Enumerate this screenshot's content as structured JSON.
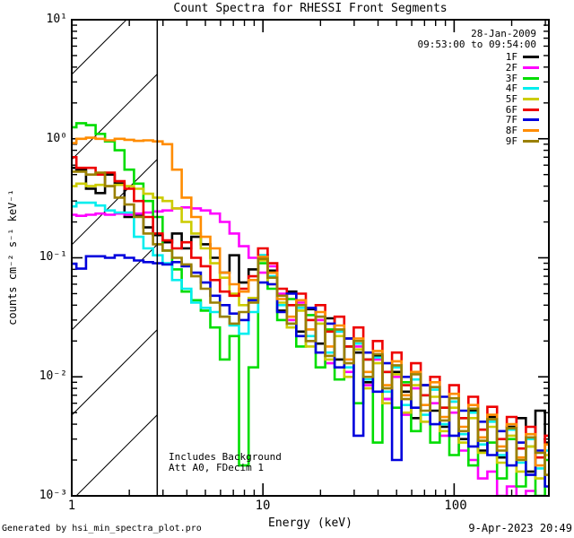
{
  "title": "Count Spectra for RHESSI Front Segments",
  "header": {
    "date": "28-Jan-2009",
    "time_range": "09:53:00 to 09:54:00"
  },
  "annotations": {
    "background": "Includes Background",
    "attenuator": "Att A0, FDecim 1"
  },
  "footer": {
    "left": "Generated by hsi_min_spectra_plot.pro",
    "right": "9-Apr-2023 20:49"
  },
  "axes": {
    "x": {
      "label": "Energy (keV)",
      "scale": "log",
      "min": 1,
      "max": 313,
      "tick_labels": [
        "1",
        "10",
        "100"
      ]
    },
    "y": {
      "label": "counts cm⁻² s⁻¹ keV⁻¹",
      "scale": "log",
      "min": 0.001,
      "max": 10,
      "tick_labels": [
        "10¹",
        "10⁰",
        "10⁻¹",
        "10⁻²",
        "10⁻³"
      ]
    }
  },
  "hatch": {
    "boundary_keV": 2.8
  },
  "legend": [
    {
      "label": "1F",
      "color": "#000000"
    },
    {
      "label": "2F",
      "color": "#ff00ff"
    },
    {
      "label": "3F",
      "color": "#00dd00"
    },
    {
      "label": "4F",
      "color": "#00eeee"
    },
    {
      "label": "5F",
      "color": "#cccc00"
    },
    {
      "label": "6F",
      "color": "#ee0000"
    },
    {
      "label": "7F",
      "color": "#0000dd"
    },
    {
      "label": "8F",
      "color": "#ff8c00"
    },
    {
      "label": "9F",
      "color": "#9a8000"
    }
  ],
  "chart_data": {
    "type": "line",
    "mode": "histogram-steps",
    "xscale": "log",
    "yscale": "log",
    "xlim": [
      1,
      313
    ],
    "ylim": [
      0.001,
      10
    ],
    "x_keV": [
      1.0,
      1.12,
      1.26,
      1.41,
      1.58,
      1.78,
      2.0,
      2.24,
      2.51,
      2.82,
      3.16,
      3.55,
      3.98,
      4.47,
      5.01,
      5.62,
      6.31,
      7.08,
      7.94,
      8.91,
      10.0,
      11.2,
      12.6,
      14.1,
      15.8,
      17.8,
      20.0,
      22.4,
      25.1,
      28.2,
      31.6,
      35.5,
      39.8,
      44.7,
      50.1,
      56.2,
      63.1,
      70.8,
      79.4,
      89.1,
      100,
      112,
      126,
      141,
      158,
      178,
      200,
      224,
      251,
      282,
      316
    ],
    "series": [
      {
        "name": "1F",
        "color": "#000000",
        "values": [
          0.57,
          0.55,
          0.38,
          0.35,
          0.5,
          0.42,
          0.22,
          0.23,
          0.18,
          0.155,
          0.135,
          0.16,
          0.12,
          0.15,
          0.13,
          0.1,
          0.075,
          0.105,
          0.062,
          0.08,
          0.105,
          0.078,
          0.036,
          0.052,
          0.024,
          0.037,
          0.019,
          0.031,
          0.014,
          0.021,
          0.016,
          0.009,
          0.015,
          0.0065,
          0.011,
          0.0075,
          0.0045,
          0.0085,
          0.0052,
          0.0038,
          0.0062,
          0.003,
          0.0052,
          0.0024,
          0.0046,
          0.0021,
          0.0038,
          0.0045,
          0.0016,
          0.0052,
          0.0028
        ]
      },
      {
        "name": "2F",
        "color": "#ff00ff",
        "values": [
          0.23,
          0.225,
          0.23,
          0.235,
          0.23,
          0.235,
          0.23,
          0.235,
          0.24,
          0.245,
          0.25,
          0.26,
          0.265,
          0.26,
          0.25,
          0.235,
          0.2,
          0.16,
          0.125,
          0.1,
          0.075,
          0.085,
          0.05,
          0.03,
          0.042,
          0.02,
          0.03,
          0.013,
          0.024,
          0.011,
          0.018,
          0.0085,
          0.014,
          0.0065,
          0.01,
          0.0048,
          0.008,
          0.0042,
          0.006,
          0.0032,
          0.005,
          0.0024,
          0.002,
          0.0014,
          0.0016,
          0.001,
          0.0012,
          0.00085,
          0.0011,
          0.0009,
          0.0008
        ]
      },
      {
        "name": "3F",
        "color": "#00dd00",
        "values": [
          1.25,
          1.35,
          1.3,
          1.1,
          0.95,
          0.8,
          0.55,
          0.42,
          0.3,
          0.22,
          0.115,
          0.08,
          0.052,
          0.044,
          0.036,
          0.026,
          0.014,
          0.022,
          0.0018,
          0.012,
          0.09,
          0.055,
          0.03,
          0.045,
          0.018,
          0.033,
          0.012,
          0.025,
          0.0095,
          0.018,
          0.006,
          0.014,
          0.0028,
          0.011,
          0.0055,
          0.009,
          0.0035,
          0.007,
          0.0028,
          0.0055,
          0.0022,
          0.0045,
          0.0018,
          0.0036,
          0.0028,
          0.0014,
          0.003,
          0.0012,
          0.0026,
          0.001,
          0.002
        ]
      },
      {
        "name": "4F",
        "color": "#00eeee",
        "values": [
          0.27,
          0.29,
          0.29,
          0.275,
          0.25,
          0.24,
          0.24,
          0.15,
          0.12,
          0.105,
          0.09,
          0.065,
          0.055,
          0.042,
          0.038,
          0.035,
          0.032,
          0.027,
          0.023,
          0.035,
          0.105,
          0.07,
          0.04,
          0.028,
          0.038,
          0.022,
          0.032,
          0.016,
          0.024,
          0.012,
          0.019,
          0.0095,
          0.0145,
          0.0075,
          0.012,
          0.0058,
          0.0095,
          0.0048,
          0.0078,
          0.004,
          0.0062,
          0.0033,
          0.005,
          0.0027,
          0.0042,
          0.0022,
          0.0036,
          0.0019,
          0.003,
          0.0017,
          0.0024
        ]
      },
      {
        "name": "5F",
        "color": "#cccc00",
        "values": [
          0.4,
          0.42,
          0.4,
          0.41,
          0.4,
          0.41,
          0.4,
          0.38,
          0.345,
          0.32,
          0.3,
          0.26,
          0.2,
          0.16,
          0.12,
          0.09,
          0.068,
          0.05,
          0.04,
          0.046,
          0.095,
          0.06,
          0.042,
          0.026,
          0.036,
          0.018,
          0.028,
          0.014,
          0.022,
          0.01,
          0.017,
          0.008,
          0.013,
          0.006,
          0.0105,
          0.005,
          0.0085,
          0.0042,
          0.0068,
          0.0035,
          0.0055,
          0.0028,
          0.0045,
          0.0023,
          0.0038,
          0.0019,
          0.0032,
          0.0016,
          0.0026,
          0.0014,
          0.0022
        ]
      },
      {
        "name": "6F",
        "color": "#ee0000",
        "values": [
          0.7,
          0.57,
          0.57,
          0.5,
          0.52,
          0.44,
          0.38,
          0.3,
          0.22,
          0.16,
          0.14,
          0.12,
          0.135,
          0.1,
          0.085,
          0.065,
          0.052,
          0.048,
          0.055,
          0.07,
          0.12,
          0.09,
          0.055,
          0.04,
          0.05,
          0.03,
          0.04,
          0.024,
          0.032,
          0.018,
          0.026,
          0.014,
          0.02,
          0.011,
          0.016,
          0.0085,
          0.013,
          0.007,
          0.01,
          0.0055,
          0.0085,
          0.0045,
          0.0068,
          0.0036,
          0.0056,
          0.003,
          0.0046,
          0.0025,
          0.0038,
          0.0021,
          0.0032
        ]
      },
      {
        "name": "7F",
        "color": "#0000dd",
        "values": [
          0.089,
          0.081,
          0.103,
          0.103,
          0.1,
          0.105,
          0.1,
          0.095,
          0.092,
          0.09,
          0.088,
          0.092,
          0.085,
          0.075,
          0.062,
          0.048,
          0.04,
          0.034,
          0.03,
          0.044,
          0.062,
          0.06,
          0.035,
          0.05,
          0.022,
          0.038,
          0.016,
          0.028,
          0.012,
          0.021,
          0.0032,
          0.016,
          0.0075,
          0.013,
          0.002,
          0.01,
          0.0055,
          0.0085,
          0.004,
          0.0068,
          0.0032,
          0.0052,
          0.0026,
          0.0042,
          0.0022,
          0.0035,
          0.0018,
          0.0028,
          0.0015,
          0.0024,
          0.0012
        ]
      },
      {
        "name": "8F",
        "color": "#ff8c00",
        "values": [
          0.92,
          1.0,
          1.02,
          1.0,
          0.97,
          1.0,
          0.98,
          0.96,
          0.97,
          0.95,
          0.9,
          0.55,
          0.32,
          0.22,
          0.15,
          0.12,
          0.075,
          0.06,
          0.052,
          0.065,
          0.102,
          0.075,
          0.045,
          0.032,
          0.044,
          0.025,
          0.035,
          0.018,
          0.027,
          0.014,
          0.021,
          0.011,
          0.0165,
          0.0085,
          0.0135,
          0.007,
          0.011,
          0.0058,
          0.009,
          0.0046,
          0.0072,
          0.0038,
          0.0058,
          0.0031,
          0.0048,
          0.0026,
          0.004,
          0.0021,
          0.0033,
          0.0018,
          0.0027
        ]
      },
      {
        "name": "9F",
        "color": "#9a8000",
        "values": [
          0.53,
          0.53,
          0.5,
          0.52,
          0.4,
          0.32,
          0.28,
          0.22,
          0.16,
          0.13,
          0.115,
          0.1,
          0.088,
          0.07,
          0.055,
          0.042,
          0.032,
          0.028,
          0.035,
          0.042,
          0.098,
          0.068,
          0.048,
          0.028,
          0.04,
          0.02,
          0.032,
          0.015,
          0.025,
          0.013,
          0.02,
          0.01,
          0.0155,
          0.008,
          0.0125,
          0.0065,
          0.0105,
          0.0052,
          0.0082,
          0.0043,
          0.0066,
          0.0035,
          0.0054,
          0.0029,
          0.0044,
          0.0024,
          0.0037,
          0.002,
          0.0031,
          0.0023,
          0.0015
        ]
      }
    ]
  }
}
